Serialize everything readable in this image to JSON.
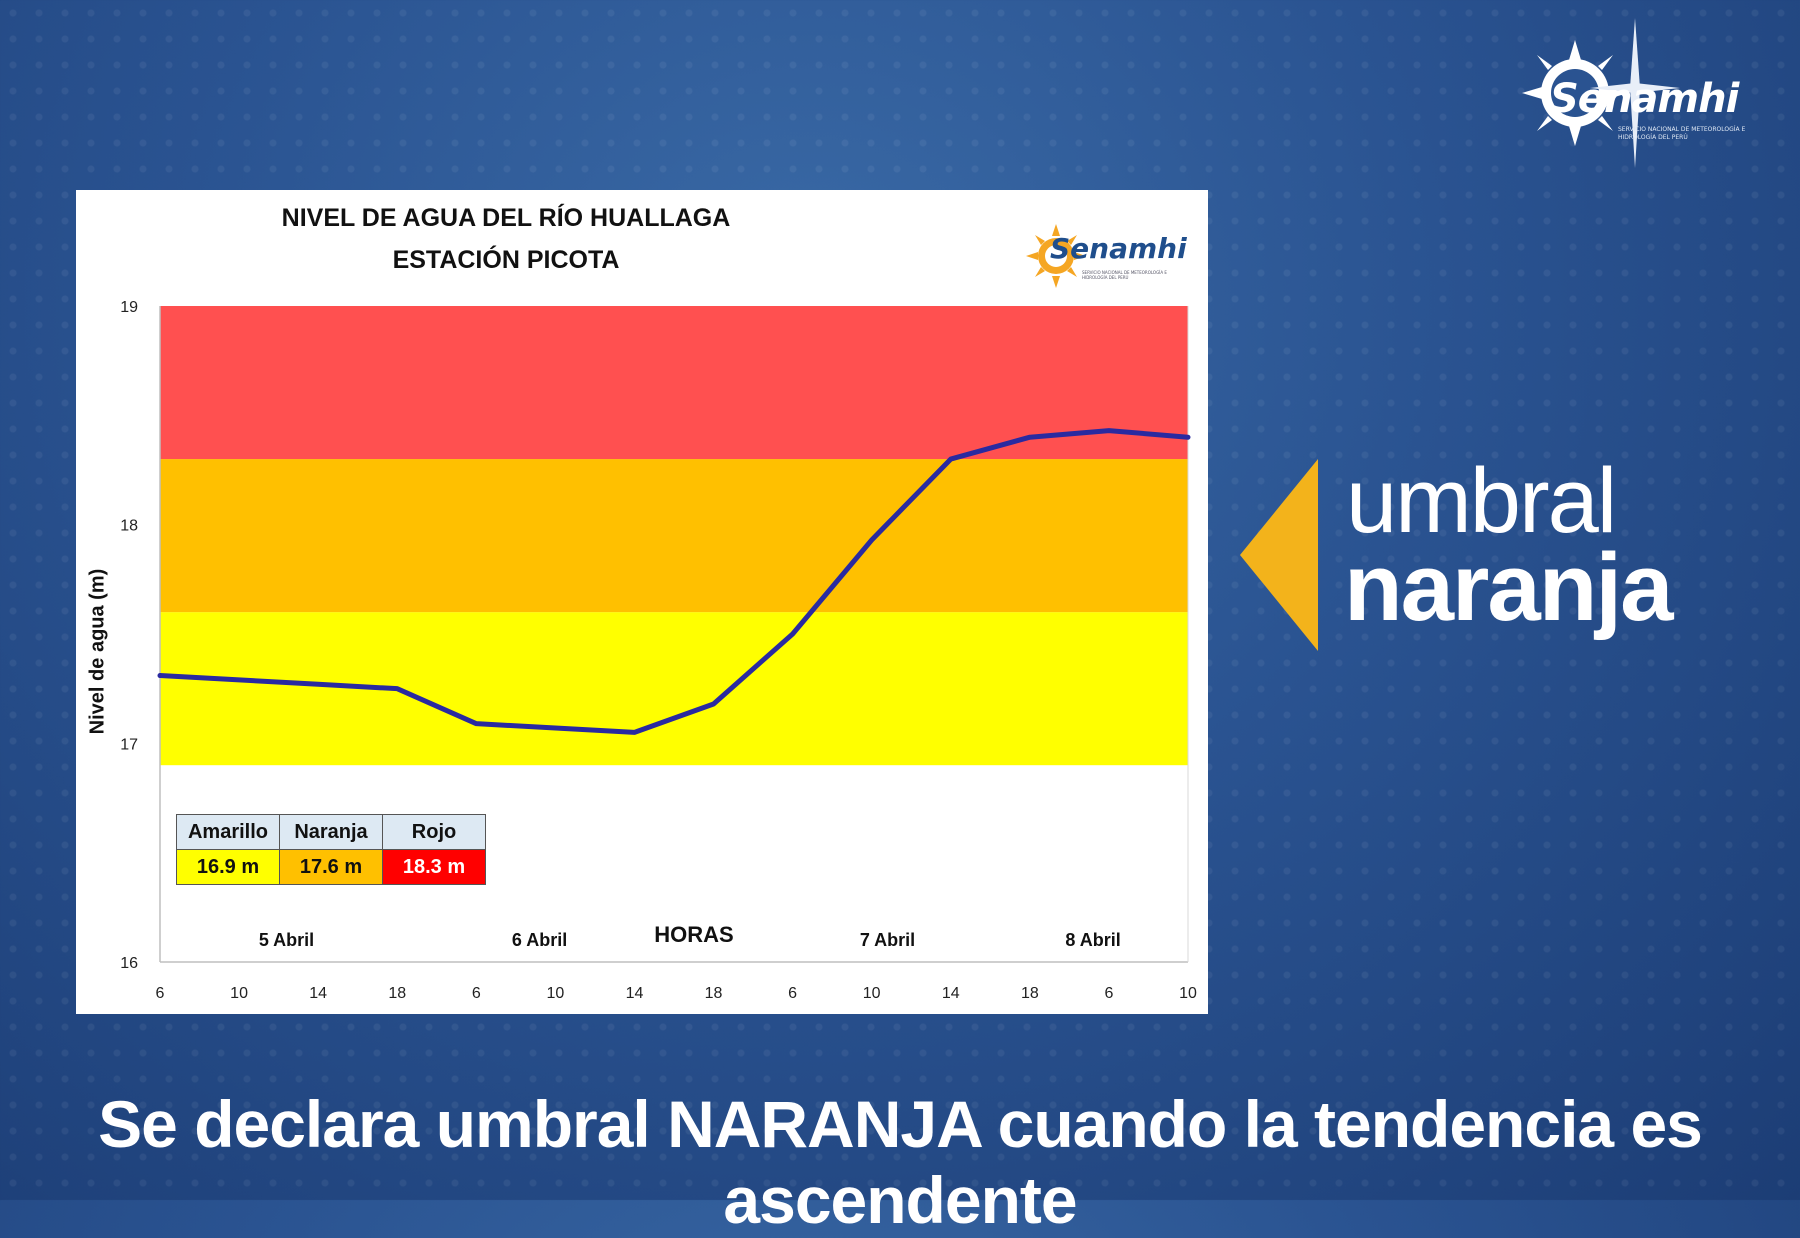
{
  "header": {
    "logo_text": "Senamhi",
    "logo_subtitle": "SERVICIO NACIONAL DE METEOROLOGÍA E HIDROLOGÍA DEL PERÚ"
  },
  "chart": {
    "title_line1": "NIVEL DE AGUA DEL RÍO HUALLAGA",
    "title_line2": "ESTACIÓN PICOTA",
    "logo_text": "Senamhi",
    "logo_subtitle": "SERVICIO NACIONAL DE METEOROLOGÍA E HIDROLOGÍA DEL PERÚ"
  },
  "legend": {
    "headers": [
      "Amarillo",
      "Naranja",
      "Rojo"
    ],
    "values": [
      "16.9 m",
      "17.6 m",
      "18.3 m"
    ]
  },
  "badge": {
    "line1": "umbral",
    "line2": "naranja"
  },
  "caption": "Se declara umbral NARANJA cuando la tendencia es ascendente",
  "colors": {
    "rojo": "#ff5050",
    "naranja": "#ffc000",
    "amarillo": "#ffff00",
    "line": "#2a2aa0",
    "accent": "#f3b31b"
  },
  "chart_data": {
    "type": "line",
    "xlabel": "HORAS",
    "ylabel": "Nivel de agua  (m)",
    "ylim": [
      16,
      19
    ],
    "yticks": [
      "16",
      "17",
      "18",
      "19"
    ],
    "x_tick_labels": [
      "6",
      "10",
      "14",
      "18",
      "6",
      "10",
      "14",
      "18",
      "6",
      "10",
      "14",
      "18",
      "6",
      "10"
    ],
    "day_labels": [
      {
        "label": "5 Abril",
        "at_tick": 1.6
      },
      {
        "label": "6 Abril",
        "at_tick": 4.8
      },
      {
        "label": "7 Abril",
        "at_tick": 9.2
      },
      {
        "label": "8 Abril",
        "at_tick": 11.8
      }
    ],
    "thresholds": [
      {
        "name": "Amarillo",
        "from": 16.9,
        "to": 17.6
      },
      {
        "name": "Naranja",
        "from": 17.6,
        "to": 18.3
      },
      {
        "name": "Rojo",
        "from": 18.3,
        "to": 19.0
      }
    ],
    "series": [
      {
        "values": [
          17.31,
          17.29,
          17.27,
          17.25,
          17.09,
          17.07,
          17.05,
          17.18,
          17.5,
          17.93,
          18.3,
          18.4,
          18.43,
          18.4
        ]
      }
    ]
  }
}
